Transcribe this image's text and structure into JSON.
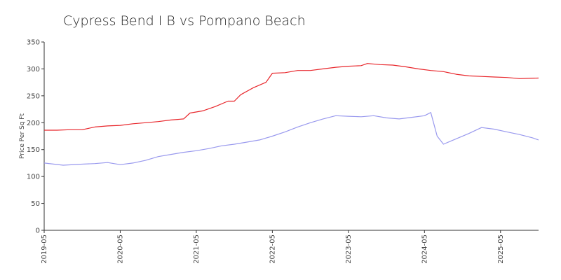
{
  "chart_data": {
    "type": "line",
    "title": "Cypress Bend I B vs Pompano Beach",
    "ylabel": "Price Per Sq Ft",
    "xlabel": "",
    "ylim": [
      0,
      350
    ],
    "yticks": [
      0,
      50,
      100,
      150,
      200,
      250,
      300,
      350
    ],
    "xlim": [
      "2019-05",
      "2025-11"
    ],
    "xticks": [
      "2019-05",
      "2020-05",
      "2021-05",
      "2022-05",
      "2023-05",
      "2024-05",
      "2025-05"
    ],
    "grid": false,
    "legend": "none",
    "series": [
      {
        "color": "#e8262b",
        "points": [
          [
            "2019-05",
            186
          ],
          [
            "2019-07",
            186
          ],
          [
            "2019-09",
            187
          ],
          [
            "2019-11",
            187
          ],
          [
            "2020-01",
            192
          ],
          [
            "2020-03",
            194
          ],
          [
            "2020-05",
            195
          ],
          [
            "2020-07",
            198
          ],
          [
            "2020-09",
            200
          ],
          [
            "2020-11",
            202
          ],
          [
            "2021-01",
            205
          ],
          [
            "2021-03",
            207
          ],
          [
            "2021-04",
            218
          ],
          [
            "2021-06",
            222
          ],
          [
            "2021-08",
            230
          ],
          [
            "2021-10",
            240
          ],
          [
            "2021-11",
            240
          ],
          [
            "2021-12",
            252
          ],
          [
            "2022-02",
            265
          ],
          [
            "2022-04",
            275
          ],
          [
            "2022-05",
            292
          ],
          [
            "2022-07",
            293
          ],
          [
            "2022-09",
            297
          ],
          [
            "2022-11",
            297
          ],
          [
            "2023-01",
            300
          ],
          [
            "2023-03",
            303
          ],
          [
            "2023-05",
            305
          ],
          [
            "2023-07",
            306
          ],
          [
            "2023-08",
            310
          ],
          [
            "2023-10",
            308
          ],
          [
            "2023-12",
            307
          ],
          [
            "2024-02",
            304
          ],
          [
            "2024-04",
            300
          ],
          [
            "2024-06",
            297
          ],
          [
            "2024-08",
            295
          ],
          [
            "2024-10",
            290
          ],
          [
            "2024-12",
            287
          ],
          [
            "2025-02",
            286
          ],
          [
            "2025-04",
            285
          ],
          [
            "2025-06",
            284
          ],
          [
            "2025-08",
            282
          ],
          [
            "2025-11",
            283
          ]
        ]
      },
      {
        "color": "#9999ee",
        "points": [
          [
            "2019-05",
            125
          ],
          [
            "2019-08",
            121
          ],
          [
            "2019-11",
            123
          ],
          [
            "2020-01",
            124
          ],
          [
            "2020-03",
            126
          ],
          [
            "2020-05",
            122
          ],
          [
            "2020-07",
            125
          ],
          [
            "2020-09",
            130
          ],
          [
            "2020-11",
            137
          ],
          [
            "2021-01",
            141
          ],
          [
            "2021-03",
            145
          ],
          [
            "2021-05",
            148
          ],
          [
            "2021-07",
            152
          ],
          [
            "2021-09",
            157
          ],
          [
            "2021-11",
            160
          ],
          [
            "2022-01",
            164
          ],
          [
            "2022-03",
            168
          ],
          [
            "2022-05",
            175
          ],
          [
            "2022-07",
            183
          ],
          [
            "2022-09",
            192
          ],
          [
            "2022-11",
            200
          ],
          [
            "2023-01",
            207
          ],
          [
            "2023-03",
            213
          ],
          [
            "2023-05",
            212
          ],
          [
            "2023-07",
            211
          ],
          [
            "2023-09",
            213
          ],
          [
            "2023-11",
            209
          ],
          [
            "2024-01",
            207
          ],
          [
            "2024-03",
            210
          ],
          [
            "2024-05",
            213
          ],
          [
            "2024-06",
            219
          ],
          [
            "2024-07",
            175
          ],
          [
            "2024-08",
            160
          ],
          [
            "2024-10",
            170
          ],
          [
            "2024-12",
            180
          ],
          [
            "2025-02",
            191
          ],
          [
            "2025-04",
            188
          ],
          [
            "2025-06",
            183
          ],
          [
            "2025-08",
            178
          ],
          [
            "2025-10",
            172
          ],
          [
            "2025-11",
            168
          ]
        ]
      }
    ]
  }
}
